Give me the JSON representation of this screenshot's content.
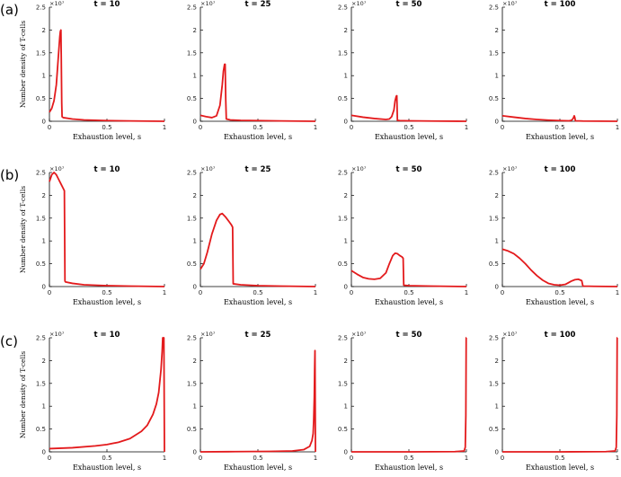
{
  "figure": {
    "row_labels": [
      "(a)",
      "(b)",
      "(c)"
    ],
    "exponent_label": "×10⁷",
    "curve_color": "#e31a1c"
  },
  "chart_data": [
    {
      "type": "line",
      "row": 0,
      "col": 0,
      "title": "t = 10",
      "xlabel": "Exhaustion level, s",
      "ylabel": "Number density of T-cells",
      "xlim": [
        0,
        1
      ],
      "ylim": [
        0,
        2.5
      ],
      "xticks": [
        "0",
        "0.5",
        "1"
      ],
      "yticks": [
        "0",
        "0.5",
        "1",
        "1.5",
        "2",
        "2.5"
      ],
      "series": [
        {
          "x": [
            0,
            0.02,
            0.04,
            0.06,
            0.07,
            0.08,
            0.09,
            0.095,
            0.1,
            0.103,
            0.107,
            0.11,
            0.12,
            0.2,
            0.3,
            0.5,
            0.7,
            1.0
          ],
          "y": [
            0.2,
            0.28,
            0.45,
            0.8,
            1.15,
            1.5,
            1.85,
            1.97,
            2.0,
            1.4,
            0.4,
            0.1,
            0.08,
            0.05,
            0.03,
            0.015,
            0.008,
            0.0
          ]
        }
      ]
    },
    {
      "type": "line",
      "row": 0,
      "col": 1,
      "title": "t = 25",
      "xlabel": "Exhaustion level, s",
      "ylabel": "",
      "xlim": [
        0,
        1
      ],
      "ylim": [
        0,
        2.5
      ],
      "xticks": [
        "0",
        "0.5",
        "1"
      ],
      "yticks": [
        "0",
        "0.5",
        "1",
        "1.5",
        "2",
        "2.5"
      ],
      "series": [
        {
          "x": [
            0,
            0.05,
            0.1,
            0.14,
            0.17,
            0.19,
            0.2,
            0.21,
            0.215,
            0.22,
            0.225,
            0.26,
            0.35,
            0.5,
            0.7,
            1.0
          ],
          "y": [
            0.13,
            0.1,
            0.08,
            0.12,
            0.35,
            0.8,
            1.1,
            1.25,
            1.25,
            0.5,
            0.05,
            0.03,
            0.02,
            0.015,
            0.008,
            0.0
          ]
        }
      ]
    },
    {
      "type": "line",
      "row": 0,
      "col": 2,
      "title": "t = 50",
      "xlabel": "Exhaustion level, s",
      "ylabel": "",
      "xlim": [
        0,
        1
      ],
      "ylim": [
        0,
        2.5
      ],
      "xticks": [
        "0",
        "0.5",
        "1"
      ],
      "yticks": [
        "0",
        "0.5",
        "1",
        "1.5",
        "2",
        "2.5"
      ],
      "series": [
        {
          "x": [
            0,
            0.1,
            0.2,
            0.3,
            0.33,
            0.35,
            0.37,
            0.38,
            0.39,
            0.395,
            0.4,
            0.42,
            0.5,
            0.7,
            1.0
          ],
          "y": [
            0.13,
            0.09,
            0.06,
            0.04,
            0.05,
            0.1,
            0.25,
            0.45,
            0.55,
            0.56,
            0.02,
            0.015,
            0.01,
            0.005,
            0.0
          ]
        }
      ]
    },
    {
      "type": "line",
      "row": 0,
      "col": 3,
      "title": "t = 100",
      "xlabel": "Exhaustion level, s",
      "ylabel": "",
      "xlim": [
        0,
        1
      ],
      "ylim": [
        0,
        2.5
      ],
      "xticks": [
        "0",
        "0.5",
        "1"
      ],
      "yticks": [
        "0",
        "0.5",
        "1",
        "1.5",
        "2",
        "2.5"
      ],
      "series": [
        {
          "x": [
            0,
            0.1,
            0.2,
            0.3,
            0.4,
            0.5,
            0.58,
            0.6,
            0.615,
            0.625,
            0.63,
            0.635,
            0.7,
            1.0
          ],
          "y": [
            0.12,
            0.09,
            0.06,
            0.04,
            0.025,
            0.015,
            0.01,
            0.02,
            0.06,
            0.12,
            0.08,
            0.01,
            0.005,
            0.0
          ]
        }
      ]
    },
    {
      "type": "line",
      "row": 1,
      "col": 0,
      "title": "t = 10",
      "xlabel": "Exhaustion level, s",
      "ylabel": "Number density of T-cells",
      "xlim": [
        0,
        1
      ],
      "ylim": [
        0,
        2.5
      ],
      "xticks": [
        "0",
        "0.5",
        "1"
      ],
      "yticks": [
        "0",
        "0.5",
        "1",
        "1.5",
        "2",
        "2.5"
      ],
      "series": [
        {
          "x": [
            0,
            0.02,
            0.04,
            0.06,
            0.08,
            0.1,
            0.12,
            0.13,
            0.135,
            0.14,
            0.2,
            0.3,
            0.5,
            0.7,
            1.0
          ],
          "y": [
            2.3,
            2.45,
            2.5,
            2.45,
            2.35,
            2.25,
            2.15,
            2.1,
            0.12,
            0.1,
            0.07,
            0.04,
            0.02,
            0.01,
            0.0
          ]
        }
      ]
    },
    {
      "type": "line",
      "row": 1,
      "col": 1,
      "title": "t = 25",
      "xlabel": "Exhaustion level, s",
      "ylabel": "",
      "xlim": [
        0,
        1
      ],
      "ylim": [
        0,
        2.5
      ],
      "xticks": [
        "0",
        "0.5",
        "1"
      ],
      "yticks": [
        "0",
        "0.5",
        "1",
        "1.5",
        "2",
        "2.5"
      ],
      "series": [
        {
          "x": [
            0,
            0.03,
            0.06,
            0.1,
            0.14,
            0.17,
            0.19,
            0.22,
            0.25,
            0.27,
            0.28,
            0.285,
            0.35,
            0.5,
            0.7,
            1.0
          ],
          "y": [
            0.38,
            0.5,
            0.75,
            1.15,
            1.45,
            1.58,
            1.6,
            1.52,
            1.42,
            1.35,
            1.3,
            0.06,
            0.04,
            0.02,
            0.01,
            0.0
          ]
        }
      ]
    },
    {
      "type": "line",
      "row": 1,
      "col": 2,
      "title": "t = 50",
      "xlabel": "Exhaustion level, s",
      "ylabel": "",
      "xlim": [
        0,
        1
      ],
      "ylim": [
        0,
        2.5
      ],
      "xticks": [
        "0",
        "0.5",
        "1"
      ],
      "yticks": [
        "0",
        "0.5",
        "1",
        "1.5",
        "2",
        "2.5"
      ],
      "series": [
        {
          "x": [
            0,
            0.05,
            0.1,
            0.15,
            0.2,
            0.25,
            0.3,
            0.33,
            0.36,
            0.38,
            0.4,
            0.42,
            0.44,
            0.45,
            0.455,
            0.5,
            0.7,
            1.0
          ],
          "y": [
            0.35,
            0.27,
            0.2,
            0.17,
            0.16,
            0.18,
            0.3,
            0.5,
            0.68,
            0.73,
            0.72,
            0.68,
            0.65,
            0.62,
            0.03,
            0.02,
            0.01,
            0.0
          ]
        }
      ]
    },
    {
      "type": "line",
      "row": 1,
      "col": 3,
      "title": "t = 100",
      "xlabel": "Exhaustion level, s",
      "ylabel": "",
      "xlim": [
        0,
        1
      ],
      "ylim": [
        0,
        2.5
      ],
      "xticks": [
        "0",
        "0.5",
        "1"
      ],
      "yticks": [
        "0",
        "0.5",
        "1",
        "1.5",
        "2",
        "2.5"
      ],
      "series": [
        {
          "x": [
            0,
            0.05,
            0.1,
            0.15,
            0.2,
            0.25,
            0.3,
            0.35,
            0.4,
            0.45,
            0.5,
            0.55,
            0.6,
            0.63,
            0.66,
            0.68,
            0.69,
            0.7,
            0.8,
            1.0
          ],
          "y": [
            0.82,
            0.78,
            0.72,
            0.62,
            0.5,
            0.36,
            0.24,
            0.14,
            0.07,
            0.04,
            0.03,
            0.05,
            0.12,
            0.15,
            0.16,
            0.14,
            0.13,
            0.01,
            0.005,
            0.0
          ]
        }
      ]
    },
    {
      "type": "line",
      "row": 2,
      "col": 0,
      "title": "t = 10",
      "xlabel": "Exhaustion level, s",
      "ylabel": "Number density of T-cells",
      "xlim": [
        0,
        1
      ],
      "ylim": [
        0,
        2.5
      ],
      "xticks": [
        "0",
        "0.5",
        "1"
      ],
      "yticks": [
        "0",
        "0.5",
        "1",
        "1.5",
        "2",
        "2.5"
      ],
      "series": [
        {
          "x": [
            0,
            0.2,
            0.4,
            0.5,
            0.6,
            0.7,
            0.8,
            0.85,
            0.9,
            0.93,
            0.95,
            0.97,
            0.98,
            0.985,
            0.99,
            0.995,
            1.0
          ],
          "y": [
            0.07,
            0.09,
            0.13,
            0.16,
            0.21,
            0.29,
            0.45,
            0.58,
            0.82,
            1.05,
            1.3,
            1.8,
            2.2,
            2.5,
            2.5,
            2.5,
            0.0
          ]
        }
      ]
    },
    {
      "type": "line",
      "row": 2,
      "col": 1,
      "title": "t = 25",
      "xlabel": "Exhaustion level, s",
      "ylabel": "",
      "xlim": [
        0,
        1
      ],
      "ylim": [
        0,
        2.5
      ],
      "xticks": [
        "0",
        "0.5",
        "1"
      ],
      "yticks": [
        "0",
        "0.5",
        "1",
        "1.5",
        "2",
        "2.5"
      ],
      "series": [
        {
          "x": [
            0,
            0.3,
            0.6,
            0.8,
            0.9,
            0.95,
            0.97,
            0.98,
            0.985,
            0.99,
            0.993,
            0.996,
            1.0
          ],
          "y": [
            0.0,
            0.005,
            0.01,
            0.02,
            0.05,
            0.12,
            0.25,
            0.4,
            0.7,
            1.2,
            1.8,
            2.22,
            0.0
          ]
        }
      ]
    },
    {
      "type": "line",
      "row": 2,
      "col": 2,
      "title": "t = 50",
      "xlabel": "Exhaustion level, s",
      "ylabel": "",
      "xlim": [
        0,
        1
      ],
      "ylim": [
        0,
        2.5
      ],
      "xticks": [
        "0",
        "0.5",
        "1"
      ],
      "yticks": [
        "0",
        "0.5",
        "1",
        "1.5",
        "2",
        "2.5"
      ],
      "series": [
        {
          "x": [
            0,
            0.5,
            0.9,
            0.98,
            0.99,
            0.995,
            0.998,
            1.0
          ],
          "y": [
            0.0,
            0.0,
            0.005,
            0.02,
            0.1,
            0.8,
            2.5,
            2.5
          ]
        }
      ]
    },
    {
      "type": "line",
      "row": 2,
      "col": 3,
      "title": "t = 100",
      "xlabel": "Exhaustion level, s",
      "ylabel": "",
      "xlim": [
        0,
        1
      ],
      "ylim": [
        0,
        2.5
      ],
      "xticks": [
        "0",
        "0.5",
        "1"
      ],
      "yticks": [
        "0",
        "0.5",
        "1",
        "1.5",
        "2",
        "2.5"
      ],
      "series": [
        {
          "x": [
            0,
            0.5,
            0.9,
            0.98,
            0.99,
            0.995,
            0.998,
            1.0
          ],
          "y": [
            0.0,
            0.0,
            0.005,
            0.02,
            0.1,
            0.8,
            2.5,
            2.5
          ]
        }
      ]
    }
  ]
}
